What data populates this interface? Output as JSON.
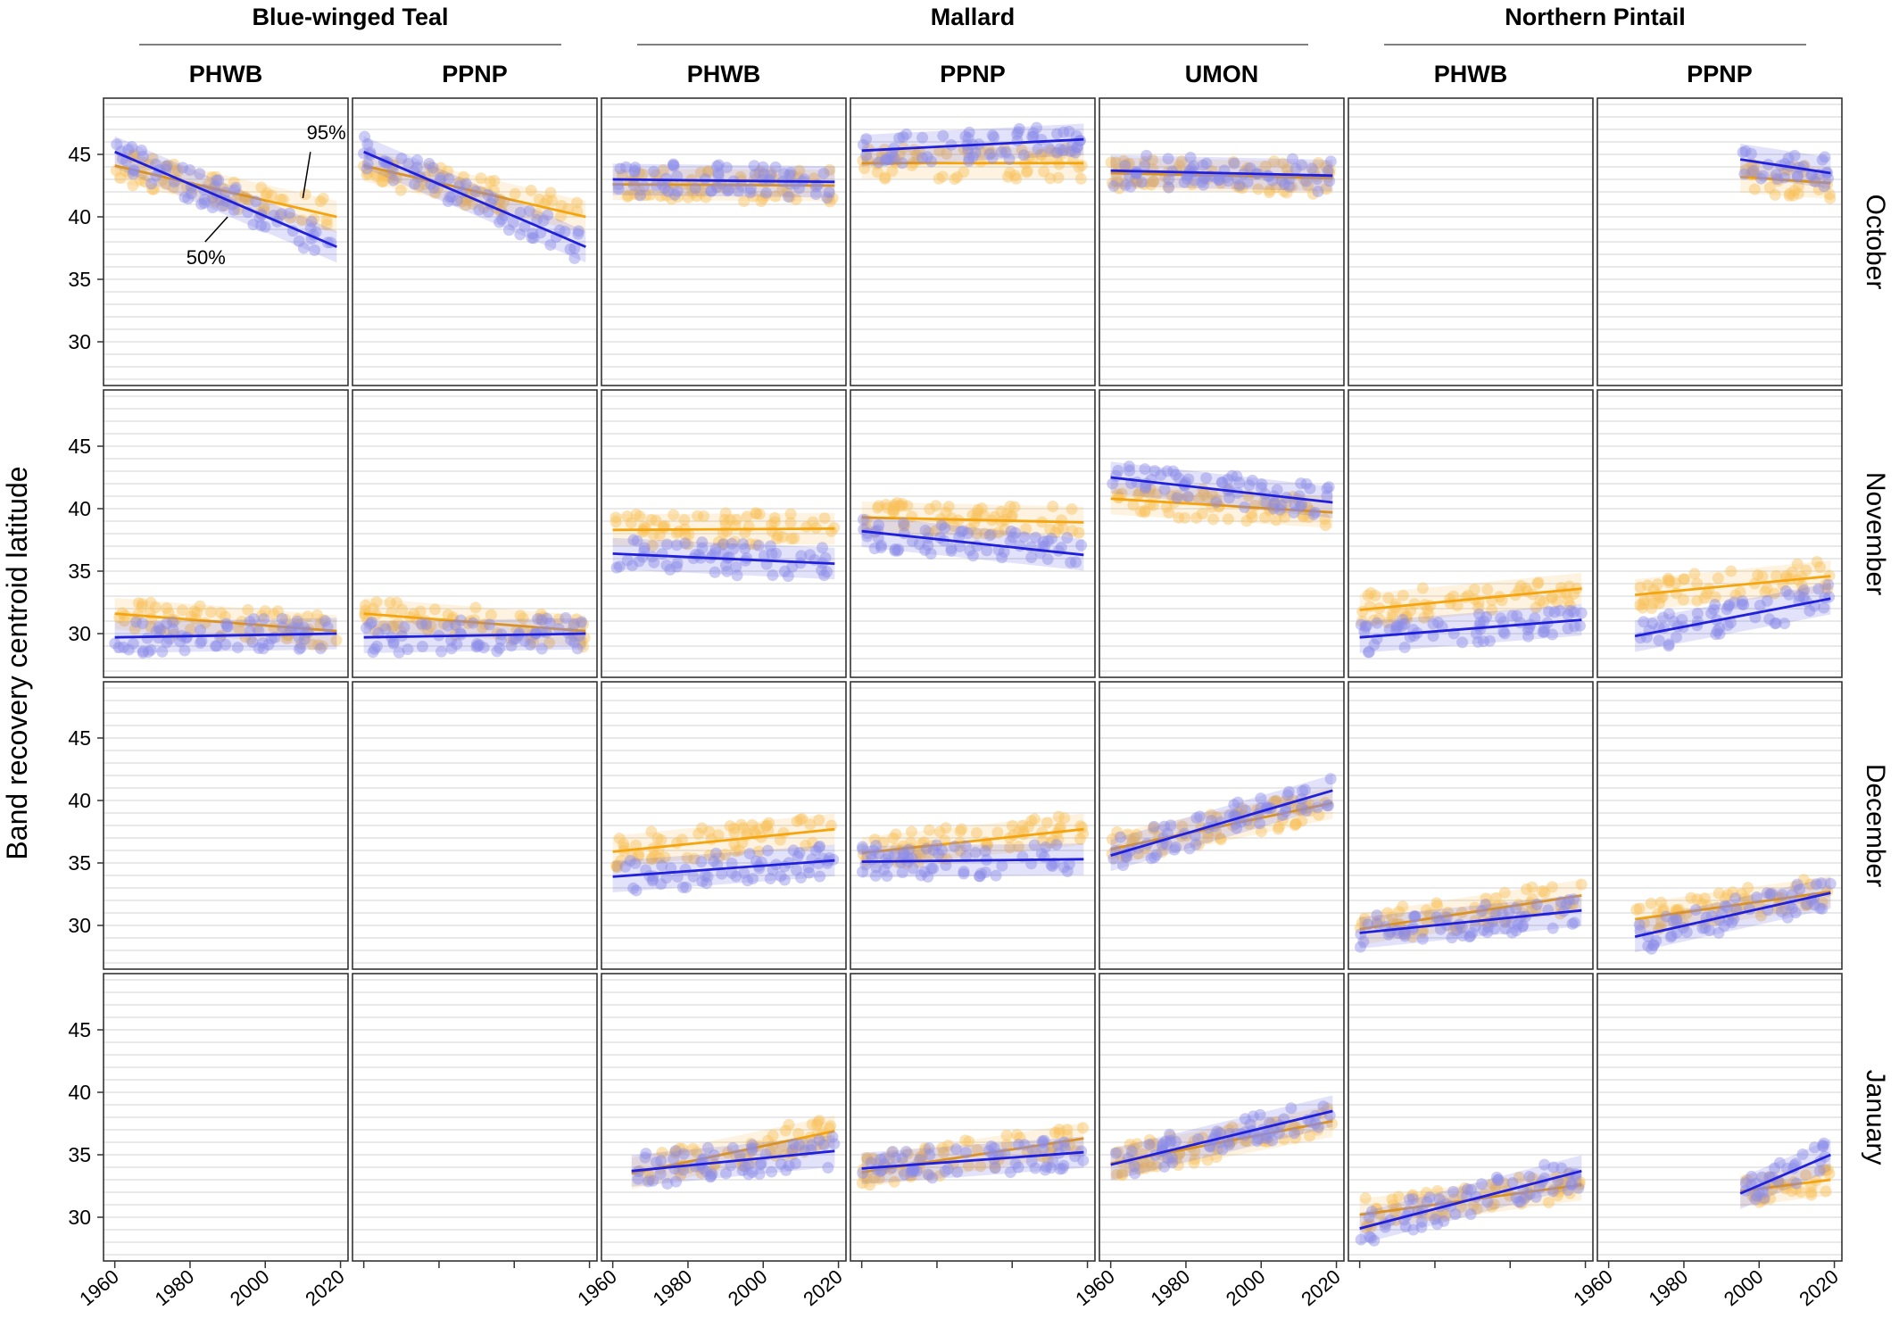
{
  "chart_data": {
    "type": "scatter",
    "ylabel": "Band recovery centroid latitude",
    "xlabel": "",
    "xlim": [
      1957,
      2022
    ],
    "ylim": [
      26.5,
      49.5
    ],
    "yticks": [
      30,
      35,
      40,
      45
    ],
    "xticks": [
      1960,
      1980,
      2000,
      2020
    ],
    "grid": true,
    "colors": {
      "q50": "#1f1fdc",
      "q95": "#f5a40c",
      "q50_points": "#8b8be8",
      "q95_points": "#f9c25a"
    },
    "species": [
      {
        "label": "Blue-winged Teal",
        "columns": [
          0,
          1
        ]
      },
      {
        "label": "Mallard",
        "columns": [
          2,
          3,
          4
        ]
      },
      {
        "label": "Northern Pintail",
        "columns": [
          5,
          6
        ]
      }
    ],
    "columns": [
      "PHWB",
      "PPNP",
      "PHWB",
      "PPNP",
      "UMON",
      "PHWB",
      "PPNP"
    ],
    "rows": [
      "October",
      "November",
      "December",
      "January"
    ],
    "annotations": [
      {
        "text": "95%",
        "series": "95%"
      },
      {
        "text": "50%",
        "series": "50%"
      }
    ],
    "series_names": [
      "50%",
      "95%"
    ],
    "panels": [
      {
        "row": 0,
        "col": 0,
        "q50": {
          "x": [
            1960,
            2019
          ],
          "y": [
            45.2,
            37.6
          ]
        },
        "q95": {
          "x": [
            1960,
            2019
          ],
          "y": [
            44.1,
            40.0
          ]
        }
      },
      {
        "row": 0,
        "col": 1,
        "q50": {
          "x": [
            1960,
            2019
          ],
          "y": [
            45.2,
            37.6
          ]
        },
        "q95": {
          "x": [
            1960,
            2019
          ],
          "y": [
            44.1,
            40.0
          ]
        }
      },
      {
        "row": 0,
        "col": 2,
        "q50": {
          "x": [
            1960,
            2019
          ],
          "y": [
            43.0,
            42.8
          ]
        },
        "q95": {
          "x": [
            1960,
            2019
          ],
          "y": [
            42.6,
            42.5
          ]
        }
      },
      {
        "row": 0,
        "col": 3,
        "q50": {
          "x": [
            1960,
            2019
          ],
          "y": [
            45.3,
            46.2
          ]
        },
        "q95": {
          "x": [
            1960,
            2019
          ],
          "y": [
            44.3,
            44.3
          ]
        }
      },
      {
        "row": 0,
        "col": 4,
        "q50": {
          "x": [
            1960,
            2019
          ],
          "y": [
            43.7,
            43.3
          ]
        },
        "q95": {
          "x": [
            1960,
            2019
          ],
          "y": [
            43.5,
            43.1
          ]
        }
      },
      {
        "row": 0,
        "col": 5,
        "q50": null,
        "q95": null
      },
      {
        "row": 0,
        "col": 6,
        "q50": {
          "x": [
            1995,
            2019
          ],
          "y": [
            44.6,
            43.5
          ]
        },
        "q95": {
          "x": [
            1995,
            2019
          ],
          "y": [
            43.2,
            42.7
          ]
        }
      },
      {
        "row": 1,
        "col": 0,
        "q50": {
          "x": [
            1960,
            2019
          ],
          "y": [
            29.7,
            30.0
          ]
        },
        "q95": {
          "x": [
            1960,
            2019
          ],
          "y": [
            31.6,
            30.2
          ]
        }
      },
      {
        "row": 1,
        "col": 1,
        "q50": {
          "x": [
            1960,
            2019
          ],
          "y": [
            29.7,
            30.0
          ]
        },
        "q95": {
          "x": [
            1960,
            2019
          ],
          "y": [
            31.6,
            30.2
          ]
        }
      },
      {
        "row": 1,
        "col": 2,
        "q50": {
          "x": [
            1960,
            2019
          ],
          "y": [
            36.4,
            35.6
          ]
        },
        "q95": {
          "x": [
            1960,
            2019
          ],
          "y": [
            38.3,
            38.4
          ]
        }
      },
      {
        "row": 1,
        "col": 3,
        "q50": {
          "x": [
            1960,
            2019
          ],
          "y": [
            38.2,
            36.3
          ]
        },
        "q95": {
          "x": [
            1960,
            2019
          ],
          "y": [
            39.3,
            38.9
          ]
        }
      },
      {
        "row": 1,
        "col": 4,
        "q50": {
          "x": [
            1960,
            2019
          ],
          "y": [
            42.5,
            40.5
          ]
        },
        "q95": {
          "x": [
            1960,
            2019
          ],
          "y": [
            40.8,
            39.7
          ]
        }
      },
      {
        "row": 1,
        "col": 5,
        "q50": {
          "x": [
            1960,
            2019
          ],
          "y": [
            29.7,
            31.1
          ]
        },
        "q95": {
          "x": [
            1960,
            2019
          ],
          "y": [
            31.9,
            33.6
          ]
        }
      },
      {
        "row": 1,
        "col": 6,
        "q50": {
          "x": [
            1967,
            2019
          ],
          "y": [
            29.8,
            32.8
          ]
        },
        "q95": {
          "x": [
            1967,
            2019
          ],
          "y": [
            33.1,
            34.6
          ]
        }
      },
      {
        "row": 2,
        "col": 0,
        "q50": null,
        "q95": null
      },
      {
        "row": 2,
        "col": 1,
        "q50": null,
        "q95": null
      },
      {
        "row": 2,
        "col": 2,
        "q50": {
          "x": [
            1960,
            2019
          ],
          "y": [
            33.9,
            35.2
          ]
        },
        "q95": {
          "x": [
            1960,
            2019
          ],
          "y": [
            35.9,
            37.7
          ]
        }
      },
      {
        "row": 2,
        "col": 3,
        "q50": {
          "x": [
            1960,
            2019
          ],
          "y": [
            35.1,
            35.3
          ]
        },
        "q95": {
          "x": [
            1960,
            2019
          ],
          "y": [
            35.8,
            37.7
          ]
        }
      },
      {
        "row": 2,
        "col": 4,
        "q50": {
          "x": [
            1960,
            2019
          ],
          "y": [
            35.6,
            40.8
          ]
        },
        "q95": {
          "x": [
            1960,
            2019
          ],
          "y": [
            36.1,
            39.8
          ]
        }
      },
      {
        "row": 2,
        "col": 5,
        "q50": {
          "x": [
            1960,
            2019
          ],
          "y": [
            29.4,
            31.2
          ]
        },
        "q95": {
          "x": [
            1960,
            2019
          ],
          "y": [
            29.7,
            32.4
          ]
        }
      },
      {
        "row": 2,
        "col": 6,
        "q50": {
          "x": [
            1967,
            2019
          ],
          "y": [
            29.1,
            32.6
          ]
        },
        "q95": {
          "x": [
            1967,
            2019
          ],
          "y": [
            30.5,
            32.7
          ]
        }
      },
      {
        "row": 3,
        "col": 0,
        "q50": null,
        "q95": null
      },
      {
        "row": 3,
        "col": 1,
        "q50": null,
        "q95": null
      },
      {
        "row": 3,
        "col": 2,
        "q50": {
          "x": [
            1965,
            2019
          ],
          "y": [
            33.7,
            35.3
          ]
        },
        "q95": {
          "x": [
            1965,
            2019
          ],
          "y": [
            33.5,
            36.9
          ]
        }
      },
      {
        "row": 3,
        "col": 3,
        "q50": {
          "x": [
            1960,
            2019
          ],
          "y": [
            33.9,
            35.2
          ]
        },
        "q95": {
          "x": [
            1960,
            2019
          ],
          "y": [
            33.6,
            36.3
          ]
        }
      },
      {
        "row": 3,
        "col": 4,
        "q50": {
          "x": [
            1960,
            2019
          ],
          "y": [
            34.2,
            38.5
          ]
        },
        "q95": {
          "x": [
            1960,
            2019
          ],
          "y": [
            34.3,
            37.7
          ]
        }
      },
      {
        "row": 3,
        "col": 5,
        "q50": {
          "x": [
            1960,
            2019
          ],
          "y": [
            29.1,
            33.7
          ]
        },
        "q95": {
          "x": [
            1960,
            2019
          ],
          "y": [
            30.2,
            32.6
          ]
        }
      },
      {
        "row": 3,
        "col": 6,
        "q50": {
          "x": [
            1995,
            2019
          ],
          "y": [
            31.9,
            35.0
          ]
        },
        "q95": {
          "x": [
            1995,
            2019
          ],
          "y": [
            32.1,
            33.0
          ]
        }
      }
    ]
  }
}
